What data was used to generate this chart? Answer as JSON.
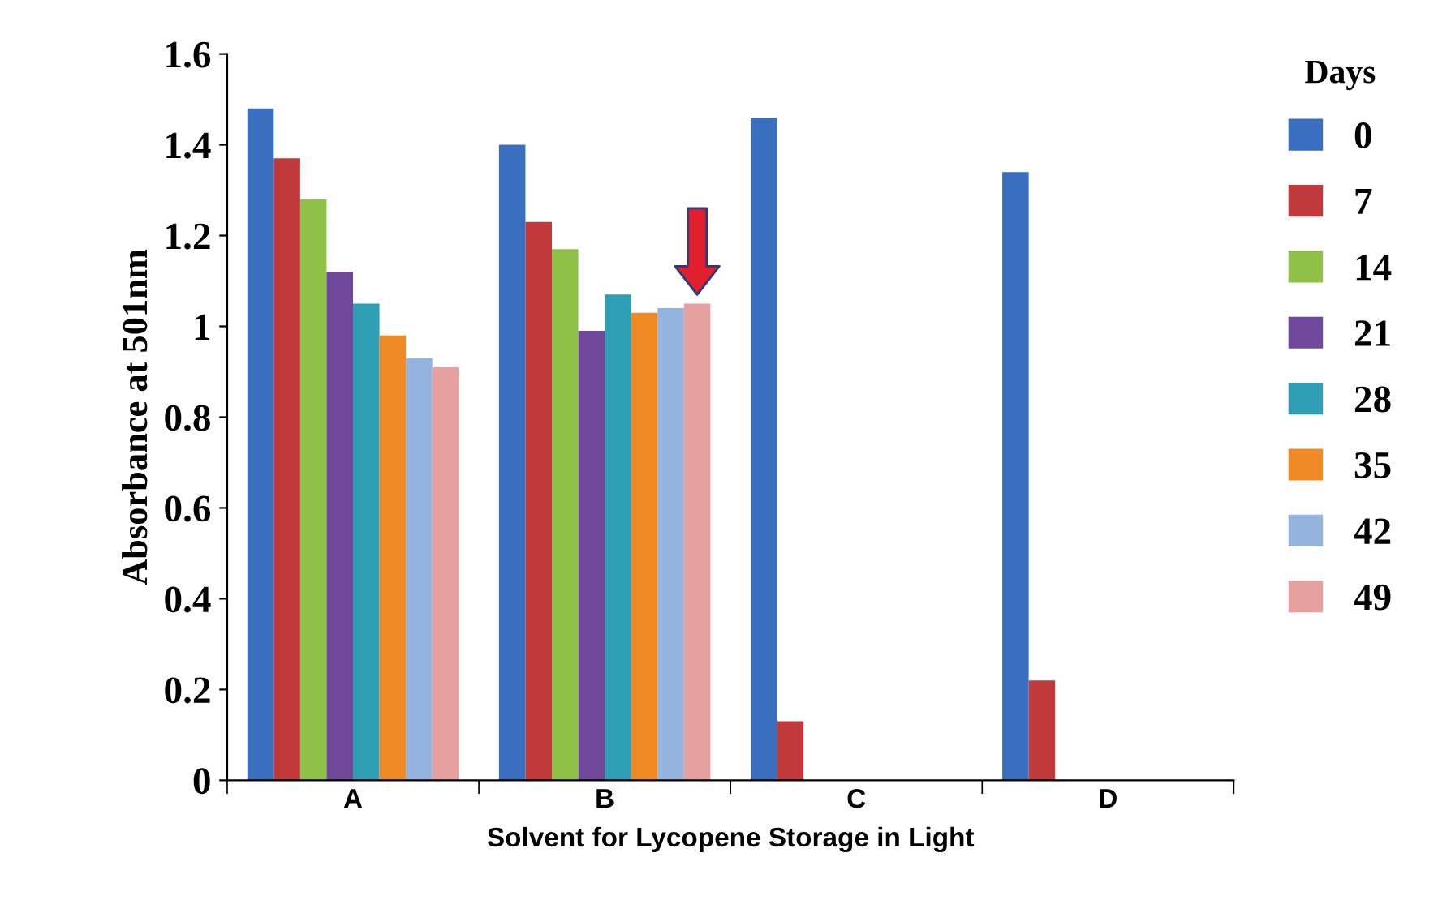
{
  "chart_data": {
    "type": "bar",
    "xlabel": "Solvent for Lycopene Storage in Light",
    "ylabel": "Absorbance at 501nm",
    "legend_title": "Days",
    "categories": [
      "A",
      "B",
      "C",
      "D"
    ],
    "series": [
      {
        "name": "0",
        "color": "#3a6fc0",
        "values": [
          1.48,
          1.4,
          1.46,
          1.34
        ]
      },
      {
        "name": "7",
        "color": "#c0393b",
        "values": [
          1.37,
          1.23,
          0.13,
          0.22
        ]
      },
      {
        "name": "14",
        "color": "#8fc048",
        "values": [
          1.28,
          1.17,
          null,
          null
        ]
      },
      {
        "name": "21",
        "color": "#6f479b",
        "values": [
          1.12,
          0.99,
          null,
          null
        ]
      },
      {
        "name": "28",
        "color": "#2e9fb5",
        "values": [
          1.05,
          1.07,
          null,
          null
        ]
      },
      {
        "name": "35",
        "color": "#f08a24",
        "values": [
          0.98,
          1.03,
          null,
          null
        ]
      },
      {
        "name": "42",
        "color": "#94b3df",
        "values": [
          0.93,
          1.04,
          null,
          null
        ]
      },
      {
        "name": "49",
        "color": "#e6a0a0",
        "values": [
          0.91,
          1.05,
          null,
          null
        ]
      }
    ],
    "ylim": [
      0,
      1.6
    ],
    "yticks": [
      {
        "value": 0,
        "label": "0"
      },
      0.2,
      0.4,
      0.6,
      0.8,
      {
        "value": 1,
        "label": "1"
      },
      1.2,
      1.4,
      1.6
    ],
    "grid": false,
    "legend": "right"
  }
}
